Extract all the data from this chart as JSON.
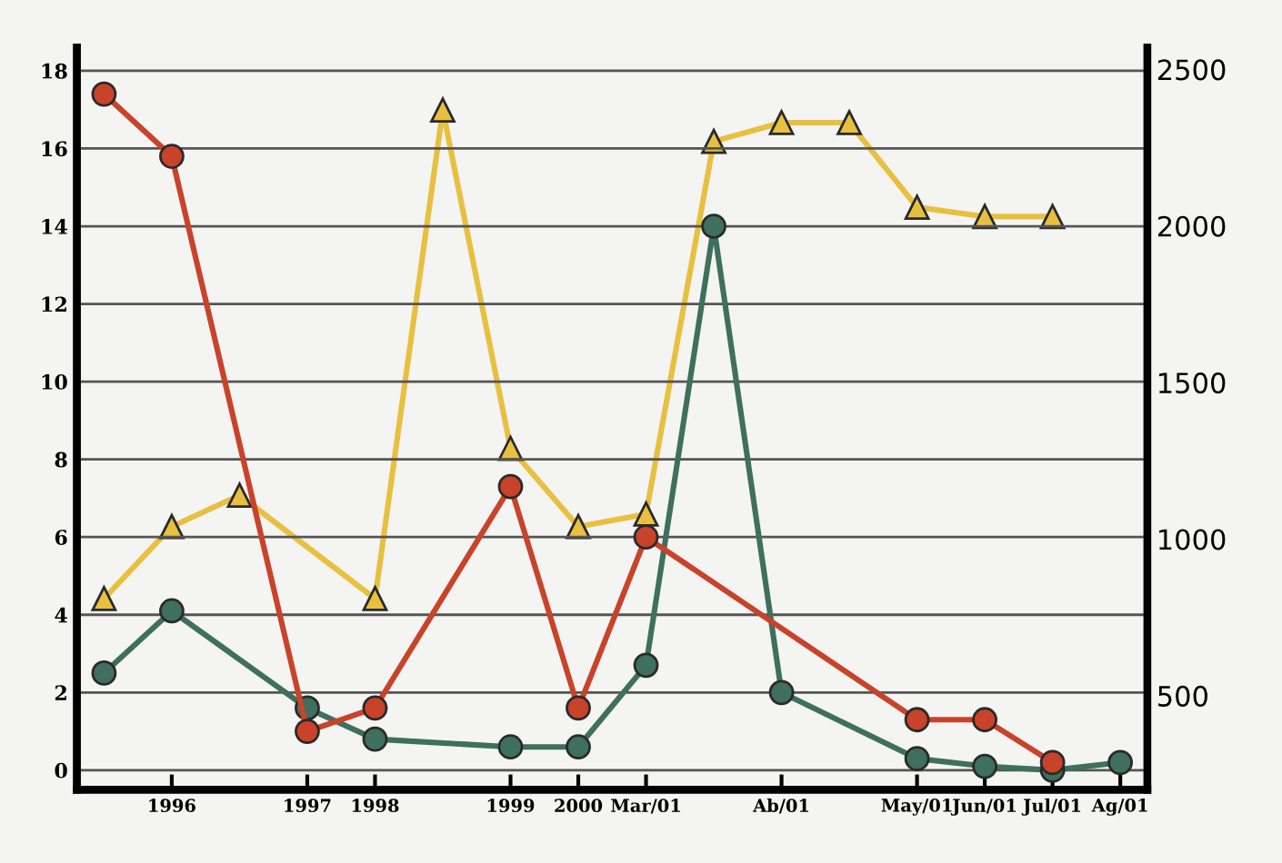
{
  "chart_data": {
    "type": "line",
    "grid": "y",
    "categories": [
      null,
      "1996",
      null,
      "1997",
      "1998",
      null,
      "1999",
      "2000",
      "Mar/01",
      null,
      "Ab/01",
      null,
      "May/01",
      "Jun/01",
      "Jul/01",
      "Ag/01"
    ],
    "ylim": [
      -0.5,
      18.6
    ],
    "yticks": [
      0,
      2,
      4,
      6,
      8,
      10,
      12,
      14,
      16,
      18
    ],
    "y2lim": [
      200,
      2570
    ],
    "y2ticks": [
      500,
      1000,
      1500,
      2000,
      2500
    ],
    "series": [
      {
        "color": "#c8432a",
        "marker": "circle",
        "values": [
          17.4,
          15.8,
          null,
          1.0,
          1.6,
          null,
          7.3,
          1.6,
          6.0,
          null,
          null,
          null,
          1.3,
          1.3,
          0.2,
          null
        ]
      },
      {
        "color": "#3f6f5f",
        "marker": "circle",
        "values": [
          2.5,
          4.1,
          null,
          1.6,
          0.8,
          null,
          0.6,
          0.6,
          2.7,
          14.0,
          2.0,
          null,
          0.3,
          0.1,
          0.0,
          0.2
        ]
      },
      {
        "color": "#e8c040",
        "marker": "triangle",
        "axis": "y2",
        "values": [
          810,
          1040,
          1140,
          null,
          810,
          2370,
          1290,
          1040,
          1080,
          2270,
          2330,
          2330,
          2060,
          2030,
          2030,
          null
        ]
      }
    ]
  }
}
